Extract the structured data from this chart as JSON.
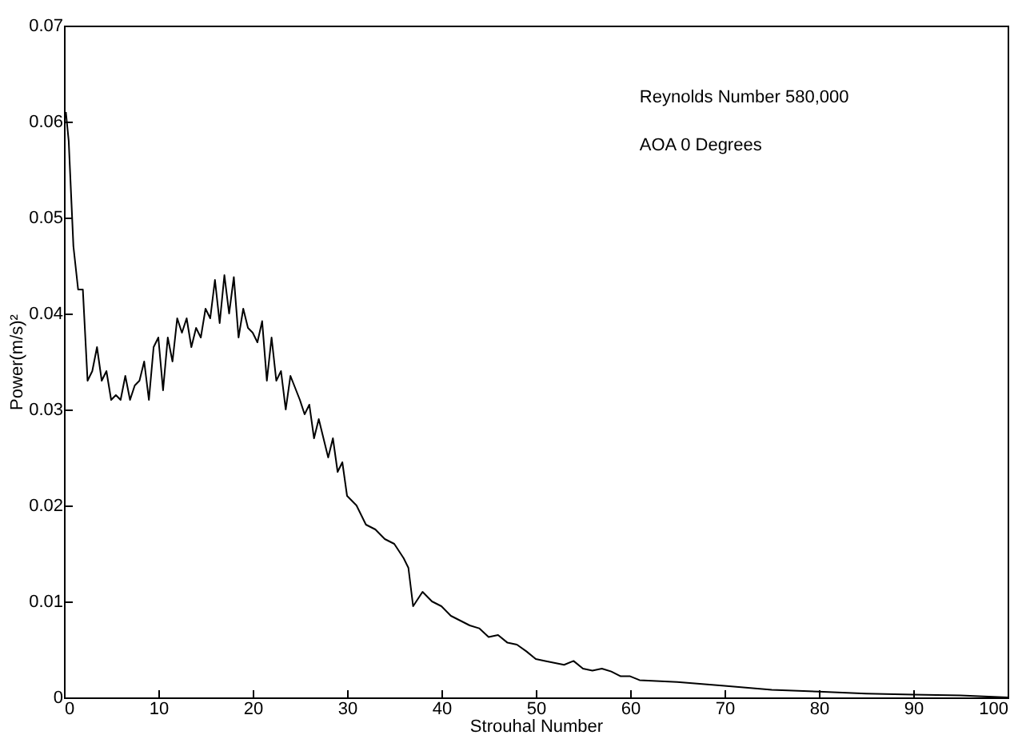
{
  "chart_data": {
    "type": "line",
    "xlabel": "Strouhal Number",
    "ylabel": "Power(m/s)²",
    "annotations": [
      "Reynolds Number 580,000",
      "AOA 0 Degrees"
    ],
    "x": [
      0.2,
      0.5,
      1,
      1.5,
      2,
      2.5,
      3,
      3.5,
      4,
      4.5,
      5,
      5.5,
      6,
      6.5,
      7,
      7.5,
      8,
      8.5,
      9,
      9.5,
      10,
      10.5,
      11,
      11.5,
      12,
      12.5,
      13,
      13.5,
      14,
      14.5,
      15,
      15.5,
      16,
      16.5,
      17,
      17.5,
      18,
      18.5,
      19,
      19.5,
      20,
      20.5,
      21,
      21.5,
      22,
      22.5,
      23,
      23.5,
      24,
      25,
      25.5,
      26,
      26.5,
      27,
      28,
      28.5,
      29,
      29.5,
      30,
      31,
      32,
      33,
      34,
      35,
      36,
      36.5,
      37,
      38,
      39,
      40,
      41,
      42,
      43,
      44,
      45,
      46,
      47,
      48,
      49,
      50,
      51,
      53,
      54,
      55,
      56,
      57,
      58,
      59,
      60,
      61,
      65,
      70,
      75,
      80,
      85,
      90,
      95,
      100
    ],
    "series": [
      {
        "color": "#000000",
        "values": [
          0.061,
          0.058,
          0.047,
          0.0425,
          0.0425,
          0.033,
          0.034,
          0.0365,
          0.033,
          0.034,
          0.031,
          0.0315,
          0.031,
          0.0335,
          0.031,
          0.0325,
          0.033,
          0.035,
          0.031,
          0.0365,
          0.0375,
          0.032,
          0.0375,
          0.035,
          0.0395,
          0.038,
          0.0395,
          0.0365,
          0.0385,
          0.0375,
          0.0405,
          0.0395,
          0.0435,
          0.039,
          0.044,
          0.04,
          0.0438,
          0.0375,
          0.0405,
          0.0385,
          0.038,
          0.037,
          0.0392,
          0.033,
          0.0375,
          0.033,
          0.034,
          0.03,
          0.0335,
          0.031,
          0.0295,
          0.0305,
          0.027,
          0.029,
          0.025,
          0.027,
          0.0235,
          0.0245,
          0.021,
          0.02,
          0.018,
          0.0175,
          0.0165,
          0.016,
          0.0145,
          0.0135,
          0.0095,
          0.011,
          0.01,
          0.0095,
          0.0085,
          0.008,
          0.0075,
          0.0072,
          0.0063,
          0.0065,
          0.0057,
          0.0055,
          0.0048,
          0.004,
          0.0038,
          0.0034,
          0.0038,
          0.003,
          0.0028,
          0.003,
          0.0027,
          0.0022,
          0.0022,
          0.0018,
          0.0016,
          0.0012,
          0.0008,
          0.0006,
          0.0004,
          0.0003,
          0.0002,
          0
        ]
      }
    ],
    "xlim": [
      0,
      100
    ],
    "xticks": [
      0,
      10,
      20,
      30,
      40,
      50,
      60,
      70,
      80,
      90,
      100
    ],
    "ylim": [
      0,
      0.07
    ],
    "yticks": [
      0,
      0.01,
      0.02,
      0.03,
      0.04,
      0.05,
      0.06,
      0.07
    ],
    "grid": false
  }
}
